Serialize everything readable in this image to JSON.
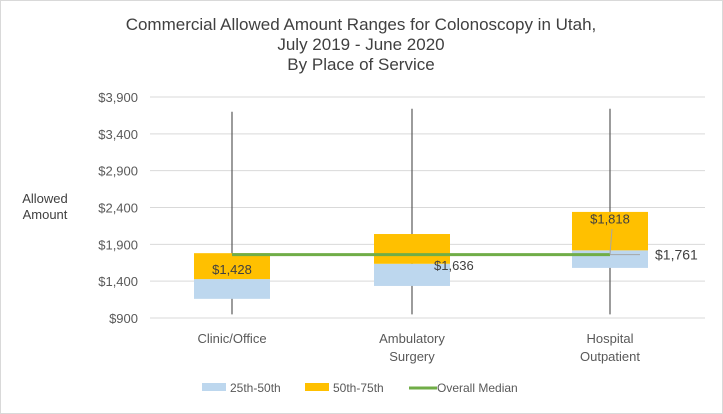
{
  "chart_data": {
    "type": "box",
    "title": [
      "Commercial Allowed Amount Ranges for Colonoscopy in Utah,",
      "July 2019 - June 2020",
      "By Place of Service"
    ],
    "ylabel": [
      "Allowed",
      "Amount"
    ],
    "ylim": [
      900,
      3900
    ],
    "yticks": [
      900,
      1400,
      1900,
      2400,
      2900,
      3400,
      3900
    ],
    "ytick_labels": [
      "$900",
      "$1,400",
      "$1,900",
      "$2,400",
      "$2,900",
      "$3,400",
      "$3,900"
    ],
    "grid": true,
    "categories": [
      [
        "Clinic/Office"
      ],
      [
        "Ambulatory",
        "Surgery"
      ],
      [
        "Hospital",
        "Outpatient"
      ]
    ],
    "boxes": [
      {
        "min": 950,
        "p25": 1160,
        "median": 1428,
        "p75": 1780,
        "max": 3700,
        "label": "$1,428"
      },
      {
        "min": 950,
        "p25": 1335,
        "median": 1636,
        "p75": 2040,
        "max": 3740,
        "label": "$1,636"
      },
      {
        "min": 950,
        "p25": 1580,
        "median": 1818,
        "p75": 2340,
        "max": 3740,
        "label": "$1,818"
      }
    ],
    "overall_median": {
      "value": 1761,
      "label": "$1,761"
    },
    "legend": {
      "position": "bottom",
      "items": [
        {
          "name": "25th-50th",
          "color": "#bdd7ee"
        },
        {
          "name": "50th-75th",
          "color": "#ffc000"
        },
        {
          "name": "Overall Median",
          "color": "#70ad47"
        }
      ]
    },
    "colors": {
      "lower": "#bdd7ee",
      "upper": "#ffc000",
      "median_line": "#70ad47",
      "whisker": "#595959",
      "grid": "#d9d9d9"
    }
  }
}
